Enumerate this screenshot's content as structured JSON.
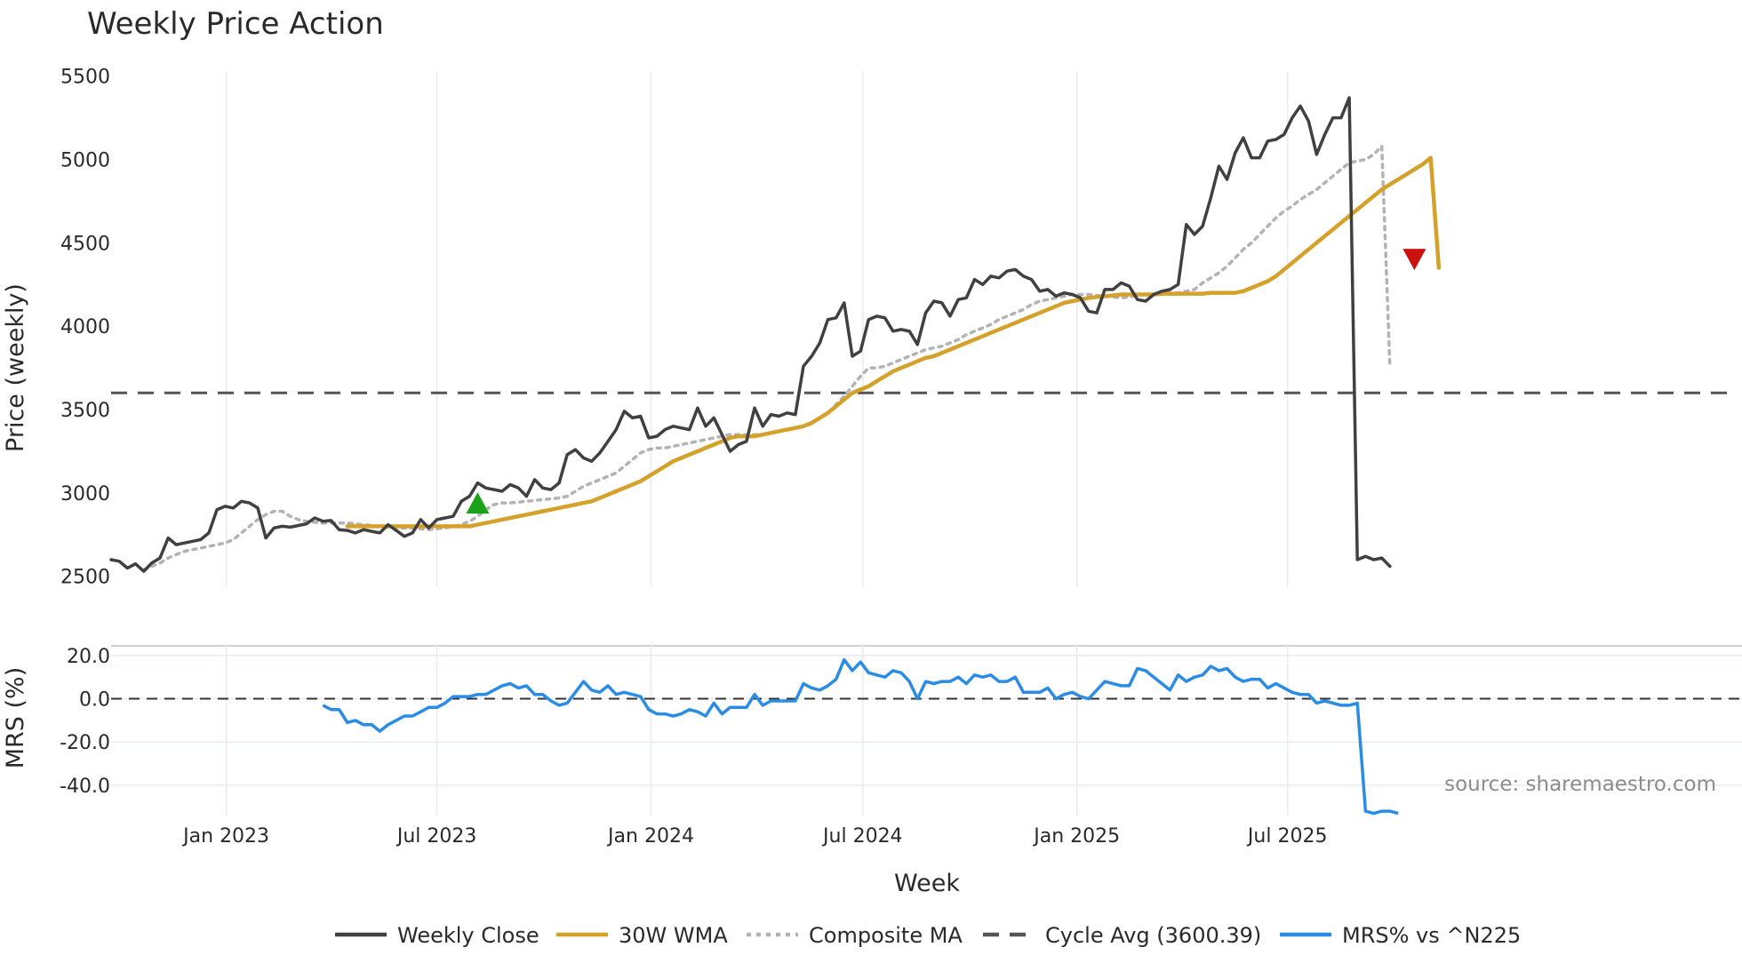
{
  "colors": {
    "weekly_close": "#404040",
    "wma": "#d4a22a",
    "composite": "#b3b3b3",
    "cycle": "#555555",
    "mrs": "#2b8ce6",
    "buy_marker": "#1aa31a",
    "sell_marker": "#cc1111",
    "grid": "#e8ecef",
    "source": "#8c8c8c"
  },
  "chart_data": [
    {
      "type": "line",
      "title": "Weekly Price Action",
      "ylabel": "Price (weekly)",
      "xlabel": "Week",
      "ylim": [
        2440,
        5530
      ],
      "yticks": [
        2500,
        3000,
        3500,
        4000,
        4500,
        5000,
        5500
      ],
      "x_start": "2022-09-24",
      "x_step_days": 7,
      "xticks": [
        {
          "label": "Jan 2023",
          "date": "2023-01-01"
        },
        {
          "label": "Jul 2023",
          "date": "2023-07-01"
        },
        {
          "label": "Jan 2024",
          "date": "2024-01-01"
        },
        {
          "label": "Jul 2024",
          "date": "2024-07-01"
        },
        {
          "label": "Jan 2025",
          "date": "2025-01-01"
        },
        {
          "label": "Jul 2025",
          "date": "2025-07-01"
        }
      ],
      "series": [
        {
          "name": "Weekly Close",
          "style": "solid",
          "values": [
            2600,
            2590,
            2550,
            2575,
            2530,
            2580,
            2610,
            2730,
            2690,
            2700,
            2710,
            2720,
            2760,
            2900,
            2920,
            2910,
            2950,
            2940,
            2910,
            2730,
            2790,
            2800,
            2795,
            2805,
            2815,
            2850,
            2830,
            2835,
            2780,
            2775,
            2760,
            2780,
            2770,
            2760,
            2810,
            2775,
            2740,
            2760,
            2840,
            2790,
            2840,
            2850,
            2860,
            2950,
            2980,
            3060,
            3030,
            3020,
            3010,
            3050,
            3030,
            2980,
            3080,
            3030,
            3020,
            3060,
            3230,
            3260,
            3210,
            3190,
            3240,
            3310,
            3380,
            3490,
            3450,
            3460,
            3330,
            3340,
            3380,
            3400,
            3390,
            3380,
            3510,
            3400,
            3450,
            3350,
            3250,
            3290,
            3310,
            3510,
            3400,
            3470,
            3460,
            3480,
            3470,
            3760,
            3820,
            3900,
            4040,
            4050,
            4140,
            3820,
            3850,
            4040,
            4060,
            4050,
            3970,
            3980,
            3970,
            3890,
            4080,
            4150,
            4140,
            4060,
            4160,
            4170,
            4280,
            4250,
            4300,
            4290,
            4330,
            4340,
            4300,
            4280,
            4210,
            4220,
            4180,
            4200,
            4190,
            4170,
            4090,
            4080,
            4220,
            4220,
            4260,
            4240,
            4160,
            4150,
            4190,
            4210,
            4220,
            4250,
            4610,
            4550,
            4600,
            4770,
            4960,
            4880,
            5040,
            5130,
            5010,
            5010,
            5110,
            5120,
            5150,
            5250,
            5320,
            5230,
            5030,
            5150,
            5250,
            5250,
            5370,
            2600,
            2620,
            2600,
            2610,
            2560
          ]
        },
        {
          "name": "30W WMA",
          "style": "solid",
          "start_index": 29,
          "values": [
            2800,
            2800,
            2800,
            2800,
            2800,
            2800,
            2800,
            2800,
            2800,
            2800,
            2800,
            2800,
            2800,
            2800,
            2800,
            2800,
            2810,
            2820,
            2830,
            2840,
            2850,
            2860,
            2870,
            2880,
            2890,
            2900,
            2910,
            2920,
            2930,
            2940,
            2950,
            2970,
            2990,
            3010,
            3030,
            3050,
            3070,
            3100,
            3130,
            3160,
            3190,
            3210,
            3230,
            3250,
            3270,
            3290,
            3310,
            3330,
            3340,
            3340,
            3340,
            3350,
            3360,
            3370,
            3380,
            3390,
            3400,
            3420,
            3450,
            3480,
            3520,
            3560,
            3600,
            3620,
            3640,
            3670,
            3700,
            3730,
            3750,
            3770,
            3790,
            3810,
            3820,
            3840,
            3860,
            3880,
            3900,
            3920,
            3940,
            3960,
            3980,
            4000,
            4020,
            4040,
            4060,
            4080,
            4100,
            4120,
            4140,
            4150,
            4160,
            4170,
            4175,
            4180,
            4185,
            4190,
            4190,
            4190,
            4190,
            4190,
            4195,
            4195,
            4195,
            4195,
            4195,
            4195,
            4200,
            4200,
            4200,
            4200,
            4210,
            4230,
            4250,
            4270,
            4300,
            4340,
            4380,
            4420,
            4460,
            4500,
            4540,
            4580,
            4620,
            4660,
            4700,
            4740,
            4780,
            4820,
            4850,
            4880,
            4910,
            4940,
            4970,
            5010,
            4350
          ]
        },
        {
          "name": "Composite MA",
          "style": "dotted",
          "start_index": 4,
          "values": [
            2540,
            2560,
            2580,
            2610,
            2630,
            2650,
            2660,
            2670,
            2680,
            2690,
            2700,
            2720,
            2760,
            2800,
            2840,
            2870,
            2890,
            2890,
            2860,
            2840,
            2830,
            2825,
            2820,
            2820,
            2820,
            2820,
            2815,
            2810,
            2805,
            2800,
            2795,
            2790,
            2790,
            2790,
            2785,
            2780,
            2785,
            2790,
            2800,
            2810,
            2830,
            2860,
            2900,
            2930,
            2940,
            2940,
            2945,
            2950,
            2955,
            2960,
            2965,
            2970,
            2980,
            3010,
            3040,
            3060,
            3080,
            3100,
            3120,
            3160,
            3200,
            3240,
            3260,
            3270,
            3270,
            3280,
            3290,
            3300,
            3310,
            3320,
            3330,
            3340,
            3350,
            3350,
            3350,
            3350,
            3350,
            3360,
            3370,
            3380,
            3390,
            3400,
            3420,
            3450,
            3480,
            3530,
            3580,
            3640,
            3700,
            3750,
            3750,
            3760,
            3780,
            3800,
            3820,
            3840,
            3860,
            3870,
            3880,
            3900,
            3920,
            3950,
            3970,
            3990,
            4010,
            4040,
            4060,
            4080,
            4100,
            4130,
            4150,
            4160,
            4170,
            4180,
            4190,
            4190,
            4190,
            4185,
            4180,
            4175,
            4170,
            4175,
            4185,
            4190,
            4195,
            4200,
            4200,
            4200,
            4210,
            4220,
            4260,
            4290,
            4320,
            4360,
            4410,
            4460,
            4500,
            4550,
            4600,
            4650,
            4690,
            4720,
            4760,
            4790,
            4820,
            4860,
            4900,
            4940,
            4980,
            4990,
            5000,
            5030,
            5080,
            3750
          ]
        },
        {
          "name": "Cycle Avg (3600.39)",
          "style": "dashed",
          "constant": 3600.39
        }
      ],
      "markers": [
        {
          "name": "buy-signal",
          "shape": "triangle-up",
          "index": 45,
          "value": 2935
        },
        {
          "name": "sell-signal",
          "shape": "triangle-down",
          "index": 160,
          "value": 4405
        }
      ]
    },
    {
      "type": "line",
      "ylabel": "MRS (%)",
      "ylim": [
        -54,
        22
      ],
      "yticks": [
        20.0,
        0.0,
        -20.0,
        -40.0
      ],
      "reference_line": 0,
      "series": [
        {
          "name": "MRS% vs ^N225",
          "style": "solid",
          "start_index": 26,
          "values": [
            -3,
            -5,
            -5,
            -11,
            -10,
            -12,
            -12,
            -15,
            -12,
            -10,
            -8,
            -8,
            -6,
            -4,
            -4,
            -2,
            1,
            1,
            1,
            2,
            2,
            4,
            6,
            7,
            5,
            6,
            2,
            2,
            -1,
            -3,
            -2,
            3,
            8,
            4,
            3,
            6,
            2,
            3,
            2,
            1,
            -5,
            -7,
            -7,
            -8,
            -7,
            -5,
            -6,
            -8,
            -2,
            -7,
            -4,
            -4,
            -4,
            2,
            -3,
            -1,
            -1,
            -1,
            -1,
            7,
            5,
            4,
            6,
            9,
            18,
            13,
            17,
            12,
            11,
            10,
            13,
            12,
            8,
            0,
            8,
            7,
            8,
            8,
            10,
            7,
            11,
            10,
            11,
            8,
            8,
            10,
            3,
            3,
            3,
            5,
            0,
            2,
            3,
            1,
            0,
            4,
            8,
            7,
            6,
            6,
            14,
            13,
            10,
            7,
            4,
            11,
            8,
            10,
            11,
            15,
            13,
            14,
            10,
            8,
            9,
            9,
            5,
            7,
            5,
            3,
            2,
            2,
            -2,
            -1,
            -2,
            -3,
            -3,
            -2,
            -52,
            -53,
            -52,
            -52,
            -53
          ]
        }
      ],
      "xticks": [
        {
          "label": "Jan 2023",
          "date": "2023-01-01"
        },
        {
          "label": "Jul 2023",
          "date": "2023-07-01"
        },
        {
          "label": "Jan 2024",
          "date": "2024-01-01"
        },
        {
          "label": "Jul 2024",
          "date": "2024-07-01"
        },
        {
          "label": "Jan 2025",
          "date": "2025-01-01"
        },
        {
          "label": "Jul 2025",
          "date": "2025-07-01"
        }
      ],
      "xlabel": "Week"
    }
  ],
  "legend": {
    "items": [
      {
        "label": "Weekly Close",
        "key": "weekly_close",
        "style": "solid"
      },
      {
        "label": "30W WMA",
        "key": "wma",
        "style": "solid"
      },
      {
        "label": "Composite MA",
        "key": "composite",
        "style": "dotted"
      },
      {
        "label": "Cycle Avg (3600.39)",
        "key": "cycle",
        "style": "dashed"
      },
      {
        "label": "MRS% vs ^N225",
        "key": "mrs",
        "style": "solid"
      }
    ]
  },
  "source_note": "source: sharemaestro.com"
}
